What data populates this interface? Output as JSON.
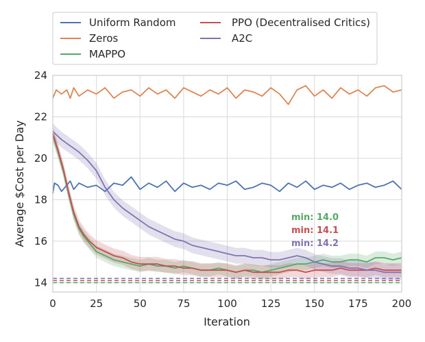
{
  "chart_data": {
    "type": "line",
    "title": "",
    "xlabel": "Iteration",
    "ylabel": "Average $Cost per Day",
    "xlim": [
      0,
      200
    ],
    "ylim": [
      13.55,
      24.0
    ],
    "xticks": [
      0,
      25,
      50,
      75,
      100,
      125,
      150,
      175,
      200
    ],
    "yticks": [
      14,
      16,
      18,
      20,
      22,
      24
    ],
    "grid": true,
    "legend_position": "above plot, 2 columns",
    "series": [
      {
        "name": "Uniform Random",
        "color": "#4c72b0",
        "band": false,
        "x": [
          0,
          1,
          3,
          5,
          8,
          10,
          12,
          15,
          20,
          25,
          30,
          35,
          40,
          45,
          50,
          55,
          60,
          65,
          70,
          75,
          80,
          85,
          90,
          95,
          100,
          105,
          110,
          115,
          120,
          125,
          130,
          135,
          140,
          145,
          150,
          155,
          160,
          165,
          170,
          175,
          180,
          185,
          190,
          195,
          200
        ],
        "values": [
          18.3,
          18.8,
          18.7,
          18.4,
          18.7,
          18.9,
          18.5,
          18.8,
          18.6,
          18.7,
          18.4,
          18.8,
          18.7,
          19.1,
          18.5,
          18.8,
          18.6,
          18.9,
          18.4,
          18.8,
          18.6,
          18.7,
          18.5,
          18.8,
          18.7,
          18.9,
          18.5,
          18.6,
          18.8,
          18.7,
          18.4,
          18.8,
          18.6,
          18.9,
          18.5,
          18.7,
          18.6,
          18.8,
          18.5,
          18.7,
          18.8,
          18.6,
          18.7,
          18.9,
          18.5
        ]
      },
      {
        "name": "Zeros",
        "color": "#dd8452",
        "band": false,
        "x": [
          0,
          2,
          5,
          8,
          10,
          12,
          15,
          20,
          25,
          30,
          35,
          40,
          45,
          50,
          55,
          60,
          65,
          70,
          75,
          80,
          85,
          90,
          95,
          100,
          105,
          110,
          115,
          120,
          125,
          130,
          135,
          140,
          145,
          150,
          155,
          160,
          165,
          170,
          175,
          180,
          185,
          190,
          195,
          200
        ],
        "values": [
          22.9,
          23.3,
          23.1,
          23.3,
          22.9,
          23.4,
          23.0,
          23.3,
          23.1,
          23.4,
          22.9,
          23.2,
          23.3,
          23.0,
          23.4,
          23.1,
          23.3,
          22.9,
          23.4,
          23.2,
          23.0,
          23.3,
          23.1,
          23.4,
          22.9,
          23.3,
          23.2,
          23.0,
          23.4,
          23.1,
          22.6,
          23.3,
          23.5,
          23.0,
          23.3,
          22.9,
          23.4,
          23.1,
          23.3,
          23.0,
          23.4,
          23.5,
          23.2,
          23.3
        ]
      },
      {
        "name": "MAPPO",
        "color": "#55a868",
        "band": true,
        "x": [
          0,
          3,
          6,
          9,
          12,
          15,
          18,
          21,
          25,
          30,
          35,
          40,
          45,
          50,
          55,
          60,
          65,
          70,
          75,
          80,
          85,
          90,
          95,
          100,
          105,
          110,
          115,
          120,
          125,
          130,
          135,
          140,
          145,
          150,
          155,
          160,
          165,
          170,
          175,
          180,
          185,
          190,
          195,
          200
        ],
        "values": [
          21.1,
          20.3,
          19.4,
          18.3,
          17.3,
          16.6,
          16.2,
          15.9,
          15.5,
          15.3,
          15.1,
          15.0,
          14.9,
          14.8,
          14.9,
          14.8,
          14.8,
          14.7,
          14.8,
          14.7,
          14.6,
          14.6,
          14.7,
          14.6,
          14.5,
          14.6,
          14.6,
          14.5,
          14.6,
          14.7,
          14.8,
          14.9,
          14.9,
          15.0,
          15.1,
          15.0,
          15.0,
          15.1,
          15.1,
          15.0,
          15.2,
          15.2,
          15.1,
          15.2
        ]
      },
      {
        "name": "PPO (Decentralised Critics)",
        "color": "#c44e52",
        "band": true,
        "x": [
          0,
          3,
          6,
          9,
          12,
          15,
          18,
          21,
          25,
          30,
          35,
          40,
          45,
          50,
          55,
          60,
          65,
          70,
          75,
          80,
          85,
          90,
          95,
          100,
          105,
          110,
          115,
          120,
          125,
          130,
          135,
          140,
          145,
          150,
          155,
          160,
          165,
          170,
          175,
          180,
          185,
          190,
          195,
          200
        ],
        "values": [
          21.2,
          20.4,
          19.5,
          18.4,
          17.4,
          16.7,
          16.3,
          16.0,
          15.7,
          15.5,
          15.3,
          15.2,
          15.0,
          14.9,
          14.9,
          14.9,
          14.8,
          14.8,
          14.7,
          14.7,
          14.6,
          14.6,
          14.6,
          14.6,
          14.5,
          14.6,
          14.5,
          14.5,
          14.5,
          14.5,
          14.6,
          14.6,
          14.5,
          14.6,
          14.6,
          14.6,
          14.7,
          14.6,
          14.6,
          14.6,
          14.7,
          14.6,
          14.6,
          14.6
        ]
      },
      {
        "name": "A2C",
        "color": "#8172b3",
        "band": true,
        "x": [
          0,
          5,
          10,
          15,
          20,
          25,
          30,
          35,
          40,
          45,
          50,
          55,
          60,
          65,
          70,
          75,
          80,
          85,
          90,
          95,
          100,
          105,
          110,
          115,
          120,
          125,
          130,
          135,
          140,
          145,
          150,
          155,
          160,
          165,
          170,
          175,
          180,
          185,
          190,
          195,
          200
        ],
        "values": [
          21.3,
          20.9,
          20.6,
          20.3,
          19.9,
          19.4,
          18.6,
          18.0,
          17.6,
          17.3,
          17.0,
          16.7,
          16.5,
          16.3,
          16.1,
          16.0,
          15.8,
          15.7,
          15.6,
          15.5,
          15.4,
          15.3,
          15.3,
          15.2,
          15.2,
          15.1,
          15.1,
          15.2,
          15.3,
          15.2,
          15.0,
          14.9,
          14.8,
          14.8,
          14.7,
          14.7,
          14.6,
          14.6,
          14.5,
          14.5,
          14.5
        ]
      }
    ],
    "min_lines": [
      {
        "label": "min: 14.0",
        "value": 14.0,
        "color": "#55a868"
      },
      {
        "label": "min: 14.1",
        "value": 14.1,
        "color": "#c44e52"
      },
      {
        "label": "min: 14.2",
        "value": 14.2,
        "color": "#8172b3"
      }
    ]
  }
}
